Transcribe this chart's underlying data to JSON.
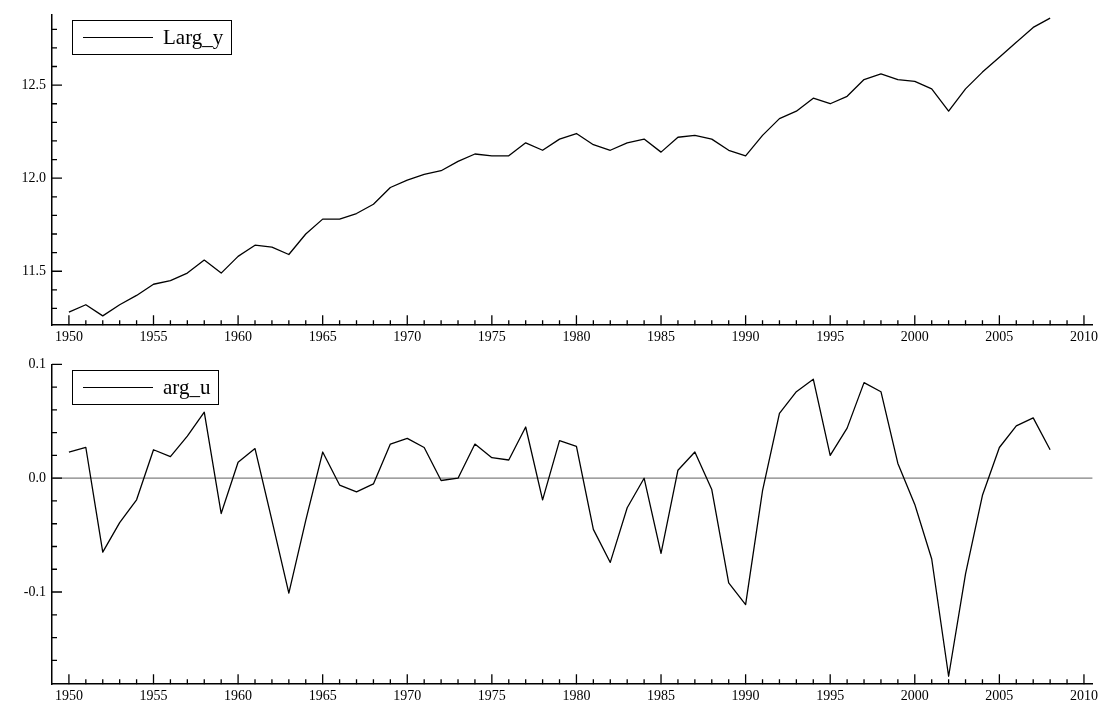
{
  "chart_data": [
    {
      "type": "line",
      "legend": "top left",
      "marker": "none",
      "grid": false,
      "x": [
        1950,
        1951,
        1952,
        1953,
        1954,
        1955,
        1956,
        1957,
        1958,
        1959,
        1960,
        1961,
        1962,
        1963,
        1964,
        1965,
        1966,
        1967,
        1968,
        1969,
        1970,
        1971,
        1972,
        1973,
        1974,
        1975,
        1976,
        1977,
        1978,
        1979,
        1980,
        1981,
        1982,
        1983,
        1984,
        1985,
        1986,
        1987,
        1988,
        1989,
        1990,
        1991,
        1992,
        1993,
        1994,
        1995,
        1996,
        1997,
        1998,
        1999,
        2000,
        2001,
        2002,
        2003,
        2004,
        2005,
        2006,
        2007,
        2008
      ],
      "series": [
        {
          "name": "Larg_y",
          "color": "#000000",
          "values": [
            11.28,
            11.32,
            11.26,
            11.32,
            11.37,
            11.43,
            11.45,
            11.49,
            11.56,
            11.49,
            11.58,
            11.64,
            11.63,
            11.59,
            11.7,
            11.78,
            11.78,
            11.81,
            11.86,
            11.95,
            11.99,
            12.02,
            12.04,
            12.09,
            12.13,
            12.12,
            12.12,
            12.19,
            12.15,
            12.21,
            12.24,
            12.18,
            12.15,
            12.19,
            12.21,
            12.14,
            12.22,
            12.23,
            12.21,
            12.15,
            12.12,
            12.23,
            12.32,
            12.36,
            12.43,
            12.4,
            12.44,
            12.53,
            12.56,
            12.53,
            12.52,
            12.48,
            12.36,
            12.48,
            12.57,
            12.65,
            12.73,
            12.81,
            12.86
          ]
        }
      ],
      "xlim": [
        1949,
        2010.5
      ],
      "xticks": [
        1950,
        {
          "value": 1951,
          "label": null
        },
        {
          "value": 1952,
          "label": null
        },
        {
          "value": 1953,
          "label": null
        },
        {
          "value": 1954,
          "label": null
        },
        1955,
        {
          "value": 1956,
          "label": null
        },
        {
          "value": 1957,
          "label": null
        },
        {
          "value": 1958,
          "label": null
        },
        {
          "value": 1959,
          "label": null
        },
        1960,
        {
          "value": 1961,
          "label": null
        },
        {
          "value": 1962,
          "label": null
        },
        {
          "value": 1963,
          "label": null
        },
        {
          "value": 1964,
          "label": null
        },
        1965,
        {
          "value": 1966,
          "label": null
        },
        {
          "value": 1967,
          "label": null
        },
        {
          "value": 1968,
          "label": null
        },
        {
          "value": 1969,
          "label": null
        },
        1970,
        {
          "value": 1971,
          "label": null
        },
        {
          "value": 1972,
          "label": null
        },
        {
          "value": 1973,
          "label": null
        },
        {
          "value": 1974,
          "label": null
        },
        1975,
        {
          "value": 1976,
          "label": null
        },
        {
          "value": 1977,
          "label": null
        },
        {
          "value": 1978,
          "label": null
        },
        {
          "value": 1979,
          "label": null
        },
        1980,
        {
          "value": 1981,
          "label": null
        },
        {
          "value": 1982,
          "label": null
        },
        {
          "value": 1983,
          "label": null
        },
        {
          "value": 1984,
          "label": null
        },
        1985,
        {
          "value": 1986,
          "label": null
        },
        {
          "value": 1987,
          "label": null
        },
        {
          "value": 1988,
          "label": null
        },
        {
          "value": 1989,
          "label": null
        },
        1990,
        {
          "value": 1991,
          "label": null
        },
        {
          "value": 1992,
          "label": null
        },
        {
          "value": 1993,
          "label": null
        },
        {
          "value": 1994,
          "label": null
        },
        1995,
        {
          "value": 1996,
          "label": null
        },
        {
          "value": 1997,
          "label": null
        },
        {
          "value": 1998,
          "label": null
        },
        {
          "value": 1999,
          "label": null
        },
        2000,
        {
          "value": 2001,
          "label": null
        },
        {
          "value": 2002,
          "label": null
        },
        {
          "value": 2003,
          "label": null
        },
        {
          "value": 2004,
          "label": null
        },
        2005,
        {
          "value": 2006,
          "label": null
        },
        {
          "value": 2007,
          "label": null
        },
        {
          "value": 2008,
          "label": null
        },
        {
          "value": 2009,
          "label": null
        },
        2010
      ],
      "ylim": [
        11.21,
        12.88
      ],
      "yticks": [
        {
          "value": 11.3,
          "label": null
        },
        {
          "value": 11.4,
          "label": null
        },
        {
          "value": 11.5,
          "label": "11.5"
        },
        {
          "value": 11.6,
          "label": null
        },
        {
          "value": 11.7,
          "label": null
        },
        {
          "value": 11.8,
          "label": null
        },
        {
          "value": 11.9,
          "label": null
        },
        {
          "value": 12.0,
          "label": "12.0"
        },
        {
          "value": 12.1,
          "label": null
        },
        {
          "value": 12.2,
          "label": null
        },
        {
          "value": 12.3,
          "label": null
        },
        {
          "value": 12.4,
          "label": null
        },
        {
          "value": 12.5,
          "label": "12.5"
        },
        {
          "value": 12.6,
          "label": null
        },
        {
          "value": 12.7,
          "label": null
        },
        {
          "value": 12.8,
          "label": null
        }
      ]
    },
    {
      "type": "line",
      "legend": "top left",
      "marker": "none",
      "grid": false,
      "x": [
        1950,
        1951,
        1952,
        1953,
        1954,
        1955,
        1956,
        1957,
        1958,
        1959,
        1960,
        1961,
        1962,
        1963,
        1964,
        1965,
        1966,
        1967,
        1968,
        1969,
        1970,
        1971,
        1972,
        1973,
        1974,
        1975,
        1976,
        1977,
        1978,
        1979,
        1980,
        1981,
        1982,
        1983,
        1984,
        1985,
        1986,
        1987,
        1988,
        1989,
        1990,
        1991,
        1992,
        1993,
        1994,
        1995,
        1996,
        1997,
        1998,
        1999,
        2000,
        2001,
        2002,
        2003,
        2004,
        2005,
        2006,
        2007,
        2008
      ],
      "series": [
        {
          "name": "arg_u",
          "color": "#000000",
          "values": [
            0.023,
            0.027,
            -0.065,
            -0.039,
            -0.019,
            0.025,
            0.019,
            0.037,
            0.058,
            -0.031,
            0.014,
            0.026,
            -0.037,
            -0.101,
            -0.037,
            0.023,
            -0.006,
            -0.012,
            -0.005,
            0.03,
            0.035,
            0.027,
            -0.002,
            0.0,
            0.03,
            0.018,
            0.016,
            0.045,
            -0.019,
            0.033,
            0.028,
            -0.045,
            -0.074,
            -0.026,
            0.0,
            -0.066,
            0.007,
            0.023,
            -0.01,
            -0.092,
            -0.111,
            -0.011,
            0.057,
            0.076,
            0.087,
            0.02,
            0.044,
            0.084,
            0.076,
            0.013,
            -0.023,
            -0.071,
            -0.174,
            -0.084,
            -0.015,
            0.027,
            0.046,
            0.053,
            0.025
          ]
        }
      ],
      "ref_lines": [
        {
          "axis": "y",
          "value": 0,
          "color": "#808080"
        }
      ],
      "xlim": [
        1949,
        2010.5
      ],
      "xticks": [
        1950,
        {
          "value": 1951,
          "label": null
        },
        {
          "value": 1952,
          "label": null
        },
        {
          "value": 1953,
          "label": null
        },
        {
          "value": 1954,
          "label": null
        },
        1955,
        {
          "value": 1956,
          "label": null
        },
        {
          "value": 1957,
          "label": null
        },
        {
          "value": 1958,
          "label": null
        },
        {
          "value": 1959,
          "label": null
        },
        1960,
        {
          "value": 1961,
          "label": null
        },
        {
          "value": 1962,
          "label": null
        },
        {
          "value": 1963,
          "label": null
        },
        {
          "value": 1964,
          "label": null
        },
        1965,
        {
          "value": 1966,
          "label": null
        },
        {
          "value": 1967,
          "label": null
        },
        {
          "value": 1968,
          "label": null
        },
        {
          "value": 1969,
          "label": null
        },
        1970,
        {
          "value": 1971,
          "label": null
        },
        {
          "value": 1972,
          "label": null
        },
        {
          "value": 1973,
          "label": null
        },
        {
          "value": 1974,
          "label": null
        },
        1975,
        {
          "value": 1976,
          "label": null
        },
        {
          "value": 1977,
          "label": null
        },
        {
          "value": 1978,
          "label": null
        },
        {
          "value": 1979,
          "label": null
        },
        1980,
        {
          "value": 1981,
          "label": null
        },
        {
          "value": 1982,
          "label": null
        },
        {
          "value": 1983,
          "label": null
        },
        {
          "value": 1984,
          "label": null
        },
        1985,
        {
          "value": 1986,
          "label": null
        },
        {
          "value": 1987,
          "label": null
        },
        {
          "value": 1988,
          "label": null
        },
        {
          "value": 1989,
          "label": null
        },
        1990,
        {
          "value": 1991,
          "label": null
        },
        {
          "value": 1992,
          "label": null
        },
        {
          "value": 1993,
          "label": null
        },
        {
          "value": 1994,
          "label": null
        },
        1995,
        {
          "value": 1996,
          "label": null
        },
        {
          "value": 1997,
          "label": null
        },
        {
          "value": 1998,
          "label": null
        },
        {
          "value": 1999,
          "label": null
        },
        2000,
        {
          "value": 2001,
          "label": null
        },
        {
          "value": 2002,
          "label": null
        },
        {
          "value": 2003,
          "label": null
        },
        {
          "value": 2004,
          "label": null
        },
        2005,
        {
          "value": 2006,
          "label": null
        },
        {
          "value": 2007,
          "label": null
        },
        {
          "value": 2008,
          "label": null
        },
        {
          "value": 2009,
          "label": null
        },
        2010
      ],
      "ylim": [
        -0.181,
        0.1
      ],
      "yticks": [
        {
          "value": -0.16,
          "label": null
        },
        {
          "value": -0.14,
          "label": null
        },
        {
          "value": -0.12,
          "label": null
        },
        {
          "value": -0.1,
          "label": "-0.1"
        },
        {
          "value": -0.08,
          "label": null
        },
        {
          "value": -0.06,
          "label": null
        },
        {
          "value": -0.04,
          "label": null
        },
        {
          "value": -0.02,
          "label": null
        },
        {
          "value": 0,
          "label": "0.0"
        },
        {
          "value": 0.02,
          "label": null
        },
        {
          "value": 0.04,
          "label": null
        },
        {
          "value": 0.06,
          "label": null
        },
        {
          "value": 0.08,
          "label": null
        },
        {
          "value": 0.1,
          "label": "0.1"
        }
      ]
    }
  ]
}
